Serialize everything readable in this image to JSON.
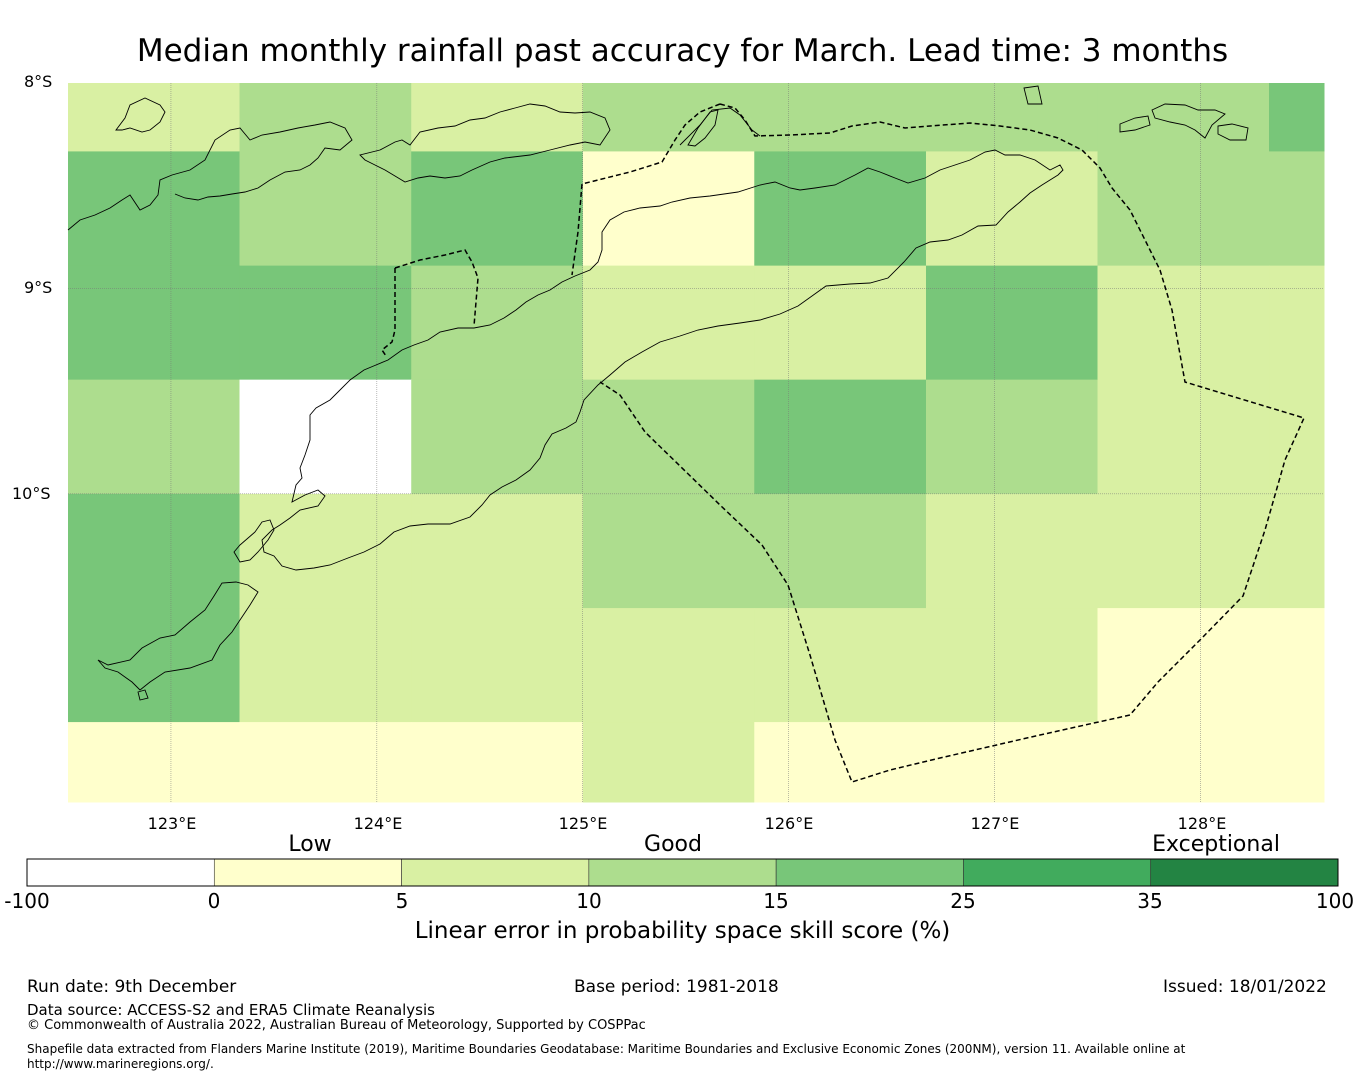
{
  "title": "Median monthly rainfall past accuracy for March. Lead time: 3 months",
  "map": {
    "lat_labels": [
      "8°S",
      "9°S",
      "10°S"
    ],
    "lon_labels": [
      "123°E",
      "124°E",
      "125°E",
      "126°E",
      "127°E",
      "128°E"
    ],
    "lon_range": [
      122.5,
      128.6
    ],
    "lat_range": [
      -8.0,
      -11.5
    ],
    "grid_lons": [
      122.5,
      123.333,
      124.167,
      125.0,
      125.833,
      126.667,
      127.5,
      128.333,
      128.6
    ],
    "grid_lats": [
      -8.0,
      -8.333,
      -8.889,
      -9.444,
      -10.0,
      -10.556,
      -11.111,
      -11.5
    ],
    "cells": [
      [
        "5-10",
        "10-15",
        "5-10",
        "10-15",
        "10-15",
        "10-15",
        "10-15",
        "15-25"
      ],
      [
        "15-25",
        "10-15",
        "15-25",
        "0-5",
        "15-25",
        "5-10",
        "10-15",
        "10-15"
      ],
      [
        "15-25",
        "15-25",
        "10-15",
        "5-10",
        "5-10",
        "15-25",
        "5-10",
        "5-10"
      ],
      [
        "10-15",
        "none",
        "10-15",
        "10-15",
        "15-25",
        "10-15",
        "5-10",
        "5-10"
      ],
      [
        "15-25",
        "5-10",
        "5-10",
        "10-15",
        "10-15",
        "5-10",
        "5-10",
        "5-10"
      ],
      [
        "15-25",
        "5-10",
        "5-10",
        "5-10",
        "5-10",
        "5-10",
        "0-5",
        "0-5"
      ],
      [
        "0-5",
        "0-5",
        "0-5",
        "5-10",
        "0-5",
        "0-5",
        "0-5",
        "0-5"
      ]
    ]
  },
  "colorbar": {
    "categories": [
      "Low",
      "Good",
      "Exceptional"
    ],
    "ticks": [
      "-100",
      "0",
      "5",
      "10",
      "15",
      "25",
      "35",
      "100"
    ],
    "colors": [
      "#ffffff",
      "#ffffcc",
      "#d9f0a3",
      "#addd8e",
      "#78c679",
      "#41ab5d",
      "#238443"
    ],
    "bins": [
      "-100 to 0",
      "0 to 5",
      "5 to 10",
      "10 to 15",
      "15 to 25",
      "25 to 35",
      "35 to 100"
    ],
    "label": "Linear error in probability space skill score (%)"
  },
  "footer": {
    "run_date": "Run date: 9th December",
    "base_period": "Base period: 1981-2018",
    "issued": "Issued: 18/01/2022",
    "data_source": "Data source: ACCESS-S2 and ERA5 Climate Reanalysis",
    "copyright": "© Commonwealth of Australia 2022, Australian Bureau of Meteorology, Supported by COSPPac",
    "shapefile": "Shapefile data extracted from Flanders Marine Institute (2019), Maritime Boundaries Geodatabase: Maritime Boundaries and Exclusive Economic Zones (200NM), version 11. Available online at http://www.marineregions.org/."
  }
}
